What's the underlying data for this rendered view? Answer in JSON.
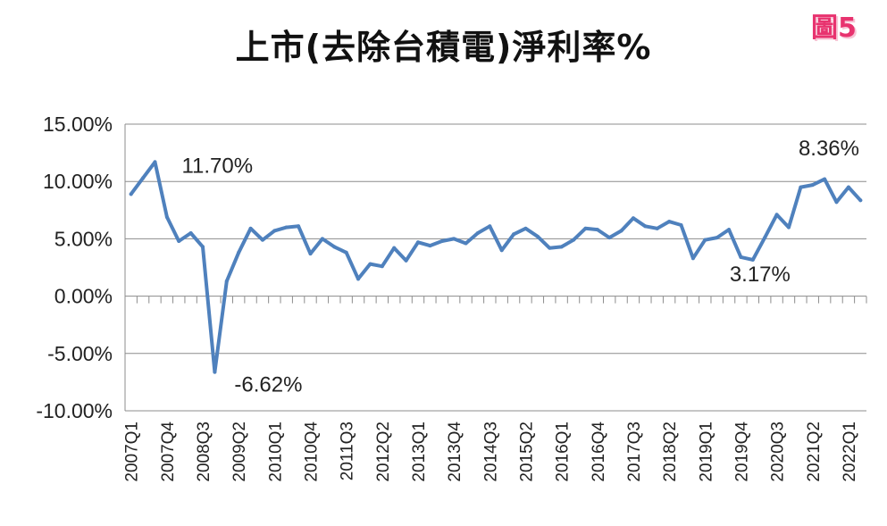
{
  "title": "上市(去除台積電)淨利率%",
  "badge": "圖5",
  "chart_data": {
    "type": "line",
    "title": "上市(去除台積電)淨利率%",
    "xlabel": "",
    "ylabel": "",
    "ylim": [
      -10,
      15
    ],
    "ytick_values": [
      15,
      10,
      5,
      0,
      -5,
      -10
    ],
    "ytick_labels": [
      "15.00%",
      "10.00%",
      "5.00%",
      "0.00%",
      "-5.00%",
      "-10.00%"
    ],
    "grid": true,
    "legend": "none",
    "line_color": "#4f81bd",
    "tick_labels": [
      "2007Q1",
      "2007Q4",
      "2008Q3",
      "2009Q2",
      "2010Q1",
      "2010Q4",
      "2011Q3",
      "2012Q2",
      "2013Q1",
      "2013Q4",
      "2014Q3",
      "2015Q2",
      "2016Q1",
      "2016Q4",
      "2017Q3",
      "2018Q2",
      "2019Q1",
      "2019Q4",
      "2020Q3",
      "2021Q2",
      "2022Q1"
    ],
    "categories": [
      "2007Q1",
      "2007Q2",
      "2007Q3",
      "2007Q4",
      "2008Q1",
      "2008Q2",
      "2008Q3",
      "2008Q4",
      "2009Q1",
      "2009Q2",
      "2009Q3",
      "2009Q4",
      "2010Q1",
      "2010Q2",
      "2010Q3",
      "2010Q4",
      "2011Q1",
      "2011Q2",
      "2011Q3",
      "2011Q4",
      "2012Q1",
      "2012Q2",
      "2012Q3",
      "2012Q4",
      "2013Q1",
      "2013Q2",
      "2013Q3",
      "2013Q4",
      "2014Q1",
      "2014Q2",
      "2014Q3",
      "2014Q4",
      "2015Q1",
      "2015Q2",
      "2015Q3",
      "2015Q4",
      "2016Q1",
      "2016Q2",
      "2016Q3",
      "2016Q4",
      "2017Q1",
      "2017Q2",
      "2017Q3",
      "2017Q4",
      "2018Q1",
      "2018Q2",
      "2018Q3",
      "2018Q4",
      "2019Q1",
      "2019Q2",
      "2019Q3",
      "2019Q4",
      "2020Q1",
      "2020Q2",
      "2020Q3",
      "2020Q4",
      "2021Q1",
      "2021Q2",
      "2021Q3",
      "2021Q4",
      "2022Q1",
      "2022Q2"
    ],
    "values": [
      8.9,
      10.3,
      11.7,
      6.9,
      4.8,
      5.5,
      4.3,
      -6.62,
      1.3,
      3.8,
      5.9,
      4.9,
      5.7,
      6.0,
      6.1,
      3.7,
      5.0,
      4.3,
      3.8,
      1.5,
      2.8,
      2.6,
      4.2,
      3.1,
      4.7,
      4.4,
      4.8,
      5.0,
      4.6,
      5.5,
      6.1,
      4.0,
      5.4,
      5.9,
      5.2,
      4.2,
      4.3,
      4.9,
      5.9,
      5.8,
      5.1,
      5.7,
      6.8,
      6.1,
      5.9,
      6.5,
      6.2,
      3.3,
      4.9,
      5.1,
      5.8,
      3.4,
      3.17,
      5.1,
      7.1,
      6.0,
      9.5,
      9.7,
      10.2,
      8.2,
      9.5,
      8.36
    ],
    "annotations": [
      {
        "text": "11.70%",
        "category": "2007Q3",
        "value": 11.7
      },
      {
        "text": "-6.62%",
        "category": "2008Q4",
        "value": -6.62
      },
      {
        "text": "3.17%",
        "category": "2020Q1",
        "value": 3.17
      },
      {
        "text": "8.36%",
        "category": "2022Q2",
        "value": 8.36
      }
    ]
  }
}
